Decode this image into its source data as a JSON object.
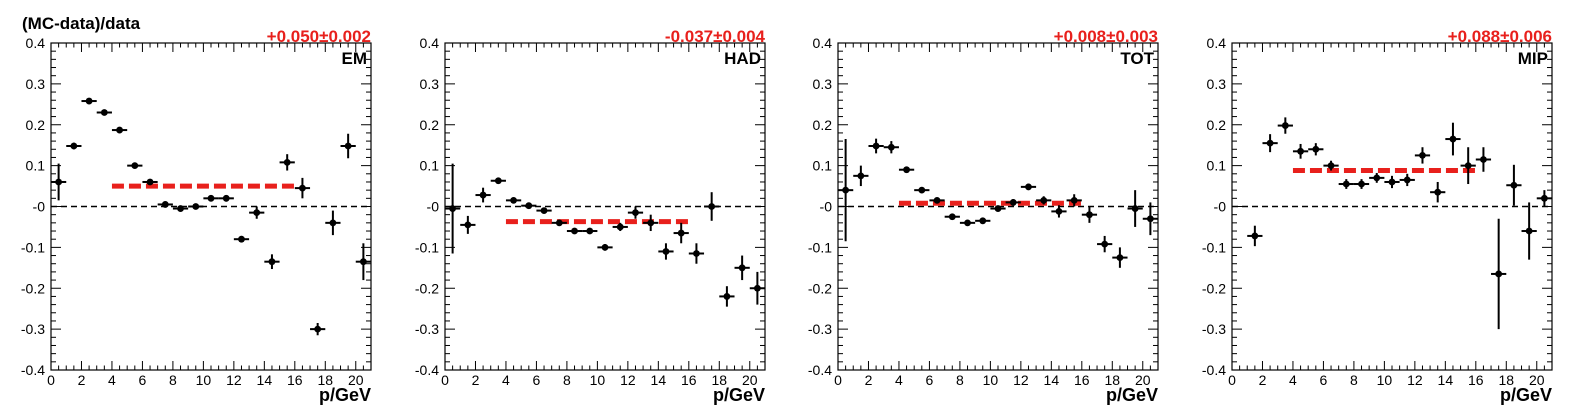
{
  "figure": {
    "ylabel": "(MC-data)/data",
    "xlabel": "p/GeV"
  },
  "colors": {
    "points": "#000000",
    "fit": "#e8201c",
    "fit_text": "#e8201c",
    "zero_line": "#000000"
  },
  "chart_data": [
    {
      "type": "scatter",
      "label": "EM",
      "fit_text": "+0.050±0.002",
      "fit": {
        "value": 0.05,
        "x_range": [
          4,
          16
        ]
      },
      "xlim": [
        0,
        21
      ],
      "ylim": [
        -0.4,
        0.4
      ],
      "xticks": [
        0,
        2,
        4,
        6,
        8,
        10,
        12,
        14,
        16,
        18,
        20
      ],
      "yticks": [
        -0.4,
        -0.3,
        -0.2,
        -0.1,
        0,
        0.1,
        0.2,
        0.3,
        0.4
      ],
      "ytick_labels": [
        "-0.4",
        "-0.3",
        "-0.2",
        "-0.1",
        "-0",
        "0.1",
        "0.2",
        "0.3",
        "0.4"
      ],
      "points": [
        {
          "x": 0.5,
          "y": 0.06,
          "err": 0.045
        },
        {
          "x": 1.5,
          "y": 0.148,
          "err": 0.008
        },
        {
          "x": 2.5,
          "y": 0.258,
          "err": 0.006
        },
        {
          "x": 3.5,
          "y": 0.23,
          "err": 0.006
        },
        {
          "x": 4.5,
          "y": 0.187,
          "err": 0.005
        },
        {
          "x": 5.5,
          "y": 0.1,
          "err": 0.005
        },
        {
          "x": 6.5,
          "y": 0.06,
          "err": 0.005
        },
        {
          "x": 7.5,
          "y": 0.005,
          "err": 0.005
        },
        {
          "x": 8.5,
          "y": -0.005,
          "err": 0.005
        },
        {
          "x": 9.5,
          "y": 0.0,
          "err": 0.006
        },
        {
          "x": 10.5,
          "y": 0.02,
          "err": 0.006
        },
        {
          "x": 11.5,
          "y": 0.02,
          "err": 0.008
        },
        {
          "x": 12.5,
          "y": -0.08,
          "err": 0.008
        },
        {
          "x": 13.5,
          "y": -0.015,
          "err": 0.015
        },
        {
          "x": 14.5,
          "y": -0.135,
          "err": 0.018
        },
        {
          "x": 15.5,
          "y": 0.108,
          "err": 0.02
        },
        {
          "x": 16.5,
          "y": 0.045,
          "err": 0.025
        },
        {
          "x": 17.5,
          "y": -0.3,
          "err": 0.015
        },
        {
          "x": 18.5,
          "y": -0.04,
          "err": 0.03
        },
        {
          "x": 19.5,
          "y": 0.148,
          "err": 0.03
        },
        {
          "x": 20.5,
          "y": -0.135,
          "err": 0.045
        }
      ]
    },
    {
      "type": "scatter",
      "label": "HAD",
      "fit_text": "-0.037±0.004",
      "fit": {
        "value": -0.037,
        "x_range": [
          4,
          16
        ]
      },
      "xlim": [
        0,
        21
      ],
      "ylim": [
        -0.4,
        0.4
      ],
      "xticks": [
        0,
        2,
        4,
        6,
        8,
        10,
        12,
        14,
        16,
        18,
        20
      ],
      "yticks": [
        -0.4,
        -0.3,
        -0.2,
        -0.1,
        0,
        0.1,
        0.2,
        0.3,
        0.4
      ],
      "ytick_labels": [
        "-0.4",
        "-0.3",
        "-0.2",
        "-0.1",
        "-0",
        "0.1",
        "0.2",
        "0.3",
        "0.4"
      ],
      "points": [
        {
          "x": 0.5,
          "y": -0.005,
          "err": 0.11
        },
        {
          "x": 1.5,
          "y": -0.045,
          "err": 0.022
        },
        {
          "x": 2.5,
          "y": 0.028,
          "err": 0.018
        },
        {
          "x": 3.5,
          "y": 0.063,
          "err": 0.008
        },
        {
          "x": 4.5,
          "y": 0.015,
          "err": 0.006
        },
        {
          "x": 5.5,
          "y": 0.002,
          "err": 0.005
        },
        {
          "x": 6.5,
          "y": -0.01,
          "err": 0.005
        },
        {
          "x": 7.5,
          "y": -0.04,
          "err": 0.005
        },
        {
          "x": 8.5,
          "y": -0.06,
          "err": 0.005
        },
        {
          "x": 9.5,
          "y": -0.06,
          "err": 0.006
        },
        {
          "x": 10.5,
          "y": -0.1,
          "err": 0.008
        },
        {
          "x": 11.5,
          "y": -0.05,
          "err": 0.01
        },
        {
          "x": 12.5,
          "y": -0.015,
          "err": 0.015
        },
        {
          "x": 13.5,
          "y": -0.04,
          "err": 0.02
        },
        {
          "x": 14.5,
          "y": -0.11,
          "err": 0.02
        },
        {
          "x": 15.5,
          "y": -0.065,
          "err": 0.025
        },
        {
          "x": 16.5,
          "y": -0.115,
          "err": 0.025
        },
        {
          "x": 17.5,
          "y": 0.0,
          "err": 0.035
        },
        {
          "x": 18.5,
          "y": -0.22,
          "err": 0.025
        },
        {
          "x": 19.5,
          "y": -0.15,
          "err": 0.03
        },
        {
          "x": 20.5,
          "y": -0.2,
          "err": 0.04
        }
      ]
    },
    {
      "type": "scatter",
      "label": "TOT",
      "fit_text": "+0.008±0.003",
      "fit": {
        "value": 0.008,
        "x_range": [
          4,
          16
        ]
      },
      "xlim": [
        0,
        21
      ],
      "ylim": [
        -0.4,
        0.4
      ],
      "xticks": [
        0,
        2,
        4,
        6,
        8,
        10,
        12,
        14,
        16,
        18,
        20
      ],
      "yticks": [
        -0.4,
        -0.3,
        -0.2,
        -0.1,
        0,
        0.1,
        0.2,
        0.3,
        0.4
      ],
      "ytick_labels": [
        "-0.4",
        "-0.3",
        "-0.2",
        "-0.1",
        "-0",
        "0.1",
        "0.2",
        "0.3",
        "0.4"
      ],
      "points": [
        {
          "x": 0.5,
          "y": 0.04,
          "err": 0.125
        },
        {
          "x": 1.5,
          "y": 0.075,
          "err": 0.025
        },
        {
          "x": 2.5,
          "y": 0.148,
          "err": 0.018
        },
        {
          "x": 3.5,
          "y": 0.145,
          "err": 0.015
        },
        {
          "x": 4.5,
          "y": 0.09,
          "err": 0.008
        },
        {
          "x": 5.5,
          "y": 0.04,
          "err": 0.006
        },
        {
          "x": 6.5,
          "y": 0.015,
          "err": 0.005
        },
        {
          "x": 7.5,
          "y": -0.025,
          "err": 0.005
        },
        {
          "x": 8.5,
          "y": -0.04,
          "err": 0.005
        },
        {
          "x": 9.5,
          "y": -0.035,
          "err": 0.005
        },
        {
          "x": 10.5,
          "y": -0.005,
          "err": 0.006
        },
        {
          "x": 11.5,
          "y": 0.01,
          "err": 0.008
        },
        {
          "x": 12.5,
          "y": 0.048,
          "err": 0.008
        },
        {
          "x": 13.5,
          "y": 0.015,
          "err": 0.01
        },
        {
          "x": 14.5,
          "y": -0.012,
          "err": 0.015
        },
        {
          "x": 15.5,
          "y": 0.015,
          "err": 0.015
        },
        {
          "x": 16.5,
          "y": -0.02,
          "err": 0.02
        },
        {
          "x": 17.5,
          "y": -0.092,
          "err": 0.02
        },
        {
          "x": 18.5,
          "y": -0.125,
          "err": 0.025
        },
        {
          "x": 19.5,
          "y": -0.005,
          "err": 0.045
        },
        {
          "x": 20.5,
          "y": -0.03,
          "err": 0.04
        }
      ]
    },
    {
      "type": "scatter",
      "label": "MIP",
      "fit_text": "+0.088±0.006",
      "fit": {
        "value": 0.088,
        "x_range": [
          4,
          16
        ]
      },
      "xlim": [
        0,
        21
      ],
      "ylim": [
        -0.4,
        0.4
      ],
      "xticks": [
        0,
        2,
        4,
        6,
        8,
        10,
        12,
        14,
        16,
        18,
        20
      ],
      "yticks": [
        -0.4,
        -0.3,
        -0.2,
        -0.1,
        0,
        0.1,
        0.2,
        0.3,
        0.4
      ],
      "ytick_labels": [
        "-0.4",
        "-0.3",
        "-0.2",
        "-0.1",
        "-0",
        "0.1",
        "0.2",
        "0.3",
        "0.4"
      ],
      "points": [
        {
          "x": 1.5,
          "y": -0.072,
          "err": 0.025
        },
        {
          "x": 2.5,
          "y": 0.155,
          "err": 0.022
        },
        {
          "x": 3.5,
          "y": 0.198,
          "err": 0.02
        },
        {
          "x": 4.5,
          "y": 0.135,
          "err": 0.018
        },
        {
          "x": 5.5,
          "y": 0.14,
          "err": 0.015
        },
        {
          "x": 6.5,
          "y": 0.1,
          "err": 0.012
        },
        {
          "x": 7.5,
          "y": 0.055,
          "err": 0.012
        },
        {
          "x": 8.5,
          "y": 0.055,
          "err": 0.012
        },
        {
          "x": 9.5,
          "y": 0.07,
          "err": 0.012
        },
        {
          "x": 10.5,
          "y": 0.06,
          "err": 0.015
        },
        {
          "x": 11.5,
          "y": 0.065,
          "err": 0.015
        },
        {
          "x": 12.5,
          "y": 0.125,
          "err": 0.02
        },
        {
          "x": 13.5,
          "y": 0.035,
          "err": 0.025
        },
        {
          "x": 14.5,
          "y": 0.165,
          "err": 0.04
        },
        {
          "x": 15.5,
          "y": 0.1,
          "err": 0.045
        },
        {
          "x": 16.5,
          "y": 0.115,
          "err": 0.03
        },
        {
          "x": 17.5,
          "y": -0.165,
          "err": 0.135
        },
        {
          "x": 18.5,
          "y": 0.052,
          "err": 0.05
        },
        {
          "x": 19.5,
          "y": -0.06,
          "err": 0.07
        },
        {
          "x": 20.5,
          "y": 0.02,
          "err": 0.02
        }
      ]
    }
  ]
}
